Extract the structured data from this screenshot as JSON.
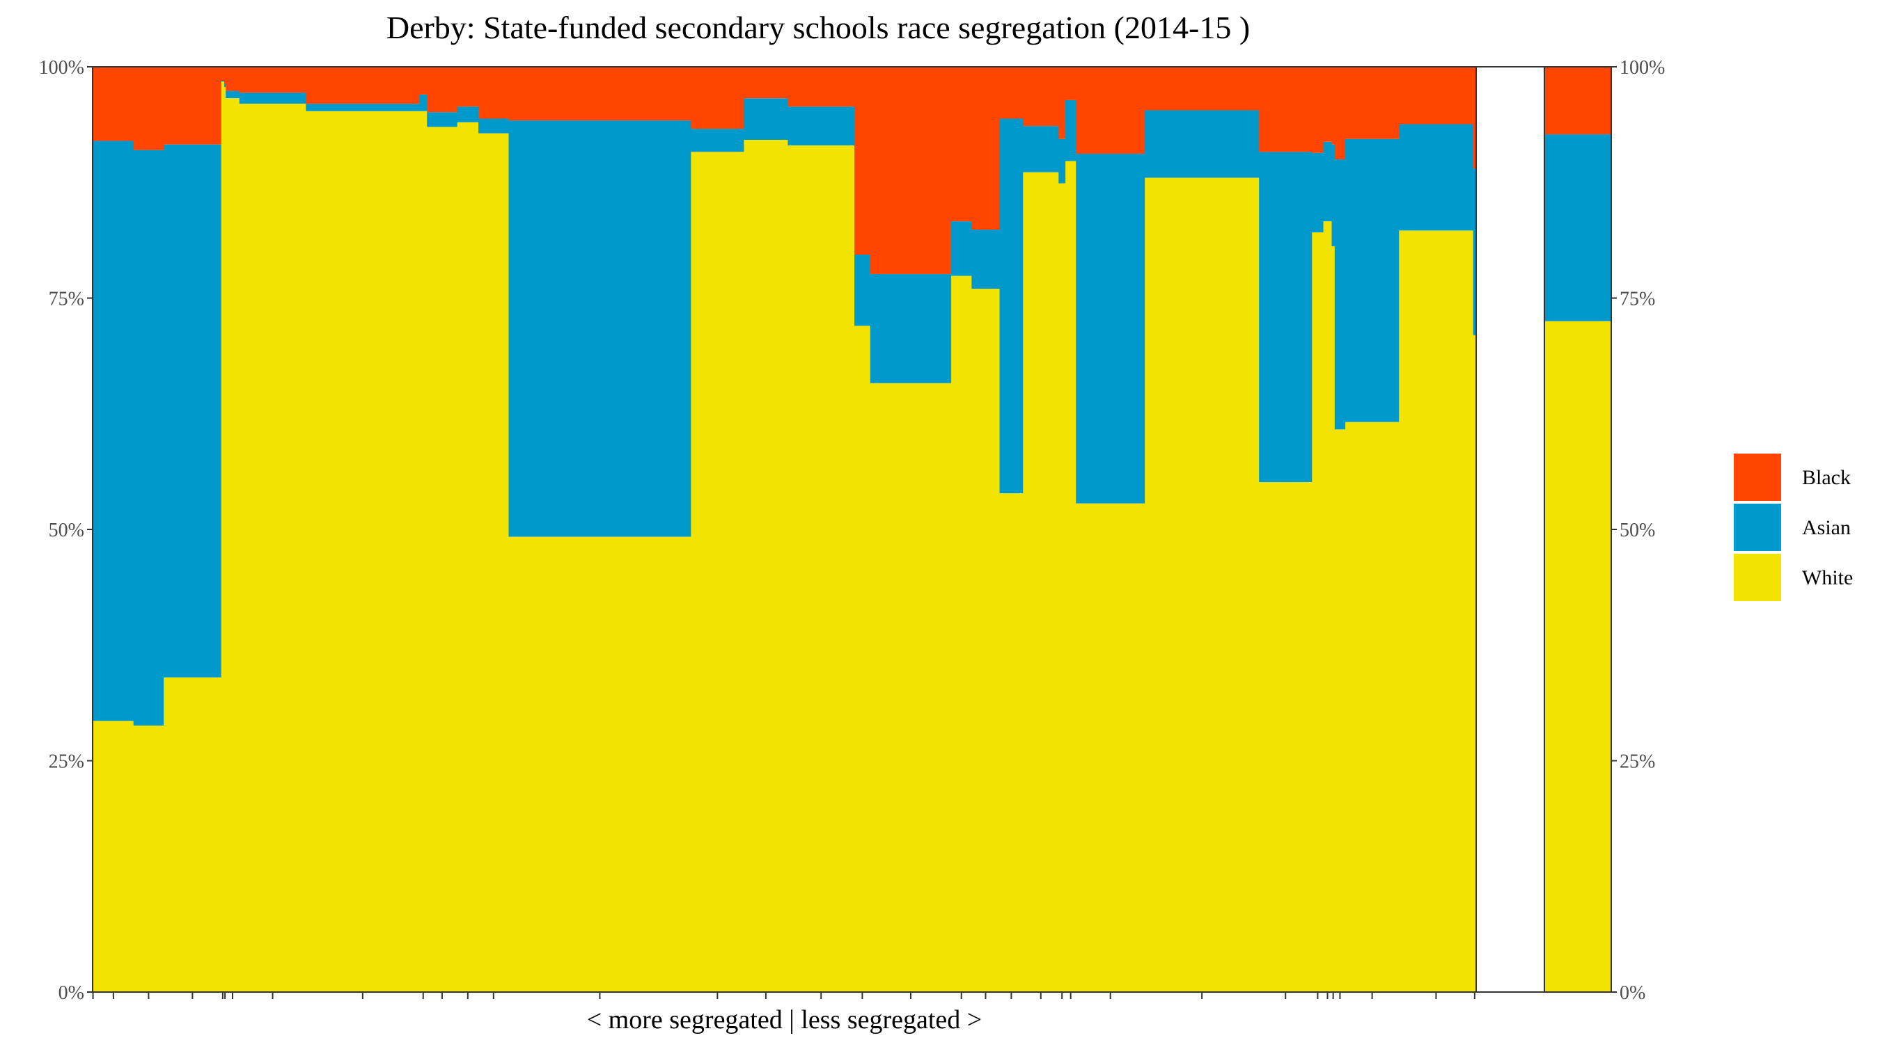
{
  "chart_data": {
    "type": "bar",
    "title": "Derby: State-funded secondary schools race segregation (2014-15 )",
    "xlabel": "< more segregated | less segregated >",
    "ylabel": "",
    "ylim": [
      0,
      100
    ],
    "y_ticks": [
      "0%",
      "25%",
      "50%",
      "75%",
      "100%"
    ],
    "grid": false,
    "legend_position": "right",
    "colors": {
      "Black": "#FF4500",
      "Asian": "#0099CC",
      "White": "#F2E400"
    },
    "series": [
      {
        "name": "Black"
      },
      {
        "name": "Asian"
      },
      {
        "name": "White"
      }
    ],
    "schools": [
      {
        "width": 0.1,
        "white": 0.0,
        "asian": 0.0,
        "black": 100.0
      },
      {
        "width": 5.3,
        "white": 29.3,
        "asian": 62.7,
        "black": 8.0
      },
      {
        "width": 4.0,
        "white": 28.8,
        "asian": 62.2,
        "black": 9.0
      },
      {
        "width": 7.6,
        "white": 34.0,
        "asian": 57.6,
        "black": 8.4
      },
      {
        "width": 0.4,
        "white": 98.4,
        "asian": 0.1,
        "black": 1.5
      },
      {
        "width": 0.2,
        "white": 97.8,
        "asian": 0.4,
        "black": 1.8
      },
      {
        "width": 1.8,
        "white": 96.6,
        "asian": 0.8,
        "black": 2.6
      },
      {
        "width": 8.8,
        "white": 96.0,
        "asian": 1.2,
        "black": 2.8
      },
      {
        "width": 15.0,
        "white": 95.2,
        "asian": 0.8,
        "black": 4.0
      },
      {
        "width": 1.0,
        "white": 95.2,
        "asian": 1.8,
        "black": 3.0
      },
      {
        "width": 4.0,
        "white": 93.5,
        "asian": 1.6,
        "black": 4.9
      },
      {
        "width": 2.8,
        "white": 94.0,
        "asian": 1.7,
        "black": 4.3
      },
      {
        "width": 4.0,
        "white": 92.8,
        "asian": 1.6,
        "black": 5.6
      },
      {
        "width": 24.1,
        "white": 49.2,
        "asian": 45.0,
        "black": 5.8
      },
      {
        "width": 7.0,
        "white": 90.8,
        "asian": 2.5,
        "black": 6.7
      },
      {
        "width": 5.8,
        "white": 92.1,
        "asian": 4.5,
        "black": 3.4
      },
      {
        "width": 8.8,
        "white": 91.5,
        "asian": 4.2,
        "black": 4.3
      },
      {
        "width": 2.1,
        "white": 72.0,
        "asian": 7.7,
        "black": 20.3
      },
      {
        "width": 10.7,
        "white": 65.8,
        "asian": 11.8,
        "black": 22.4
      },
      {
        "width": 2.7,
        "white": 77.4,
        "asian": 5.9,
        "black": 16.7
      },
      {
        "width": 3.7,
        "white": 76.0,
        "asian": 6.4,
        "black": 17.6
      },
      {
        "width": 3.1,
        "white": 53.9,
        "asian": 40.5,
        "black": 5.6
      },
      {
        "width": 4.7,
        "white": 88.6,
        "asian": 5.0,
        "black": 6.4
      },
      {
        "width": 0.9,
        "white": 87.4,
        "asian": 4.8,
        "black": 7.8
      },
      {
        "width": 1.4,
        "white": 89.8,
        "asian": 6.6,
        "black": 3.6
      },
      {
        "width": 9.1,
        "white": 52.8,
        "asian": 37.8,
        "black": 9.4
      },
      {
        "width": 15.1,
        "white": 88.0,
        "asian": 7.3,
        "black": 4.7
      },
      {
        "width": 7.0,
        "white": 55.1,
        "asian": 35.7,
        "black": 9.2
      },
      {
        "width": 1.5,
        "white": 82.1,
        "asian": 8.6,
        "black": 9.3
      },
      {
        "width": 1.1,
        "white": 83.3,
        "asian": 8.6,
        "black": 8.1
      },
      {
        "width": 0.4,
        "white": 80.6,
        "asian": 11.0,
        "black": 8.4
      },
      {
        "width": 1.4,
        "white": 60.8,
        "asian": 29.2,
        "black": 10.0
      },
      {
        "width": 7.1,
        "white": 61.6,
        "asian": 30.6,
        "black": 7.8
      },
      {
        "width": 9.8,
        "white": 82.3,
        "asian": 11.5,
        "black": 6.2
      },
      {
        "width": 0.4,
        "white": 71.0,
        "asian": 18.0,
        "black": 11.0
      }
    ],
    "overall": {
      "white": 72.5,
      "asian": 20.2,
      "black": 7.3
    }
  }
}
